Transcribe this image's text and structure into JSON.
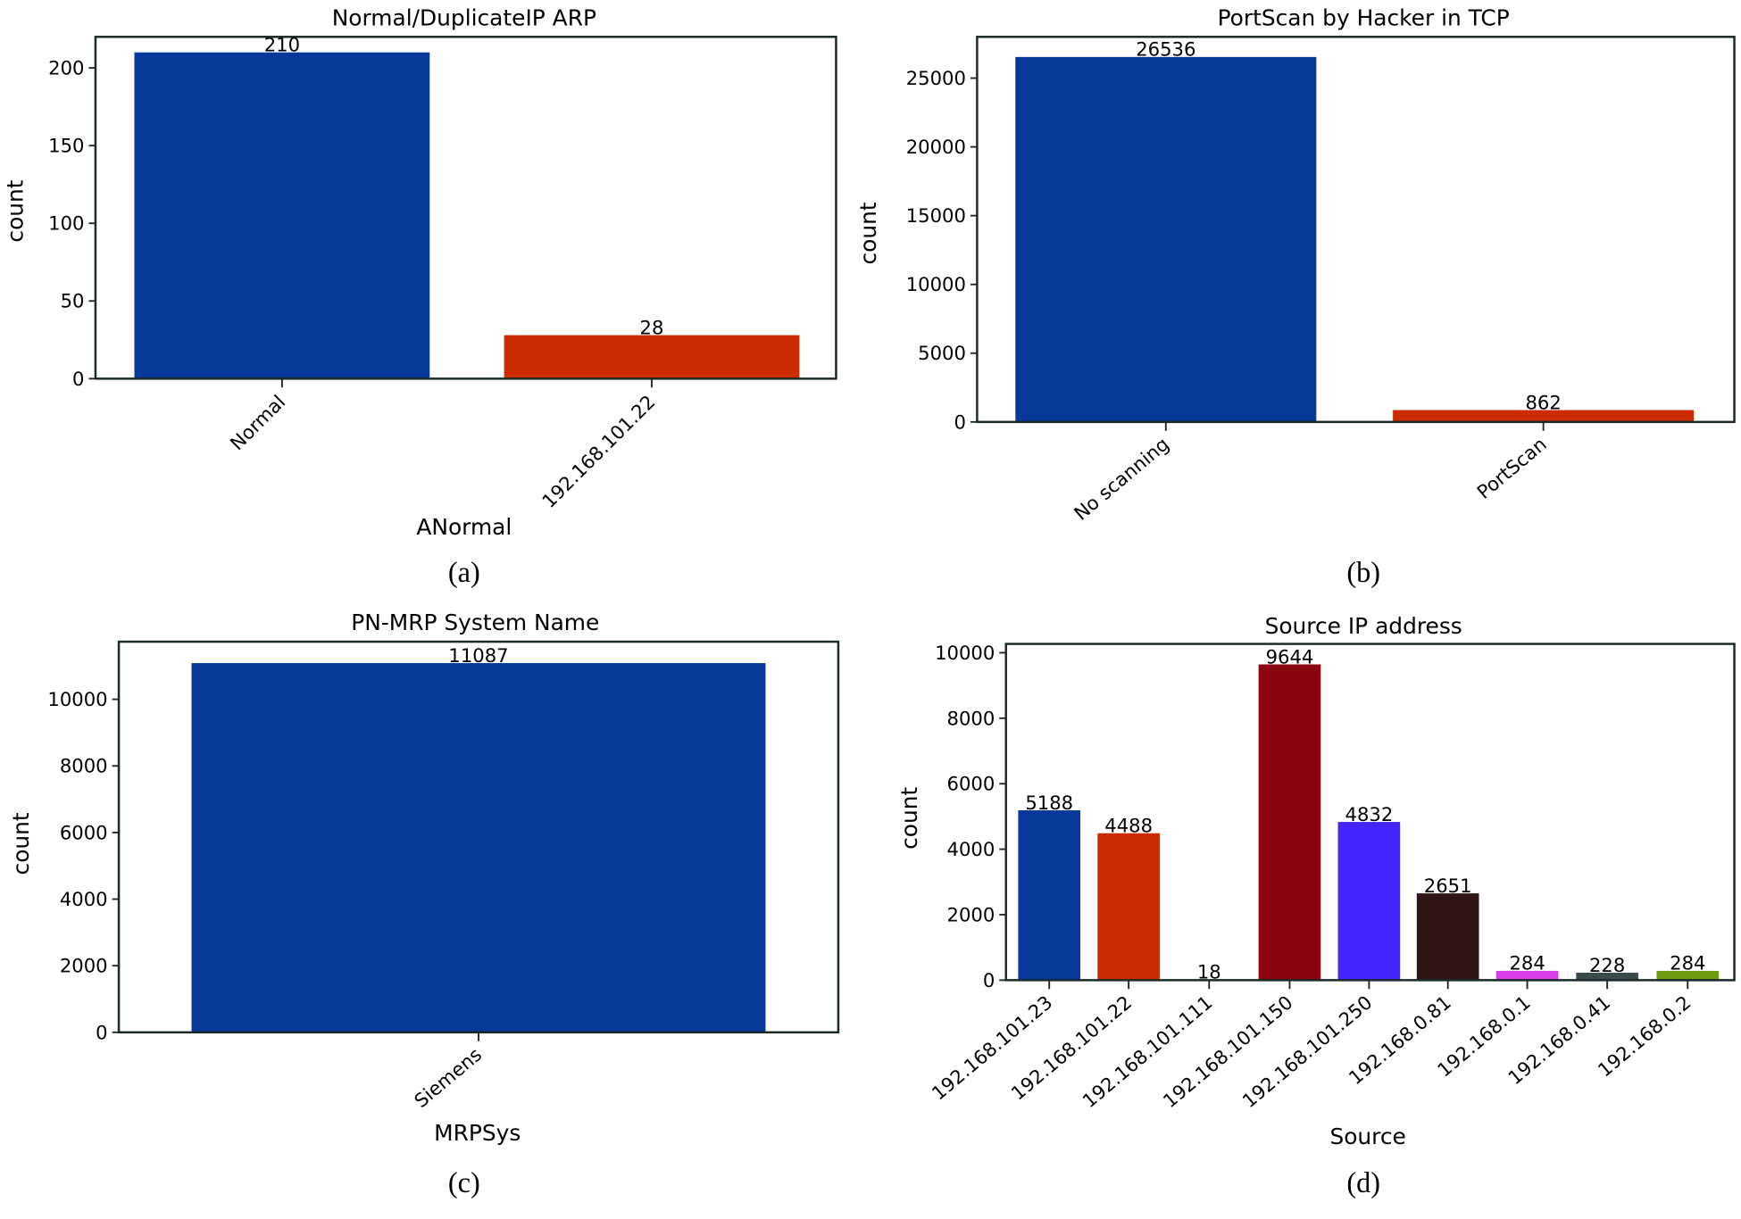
{
  "chart_data": [
    {
      "type": "bar",
      "caption": "(a)",
      "title": "Normal/DuplicateIP ARP",
      "xlabel": "ANormal",
      "ylabel": "count",
      "categories": [
        "Normal",
        "192.168.101.22"
      ],
      "values": [
        210,
        28
      ],
      "data_labels": [
        "210",
        "28"
      ],
      "colors": [
        "#06399a",
        "#cc2a00"
      ],
      "ylim": [
        0,
        220
      ],
      "yticks": [
        0,
        50,
        100,
        150,
        200
      ],
      "grid": false
    },
    {
      "type": "bar",
      "caption": "(b)",
      "title": "PortScan by Hacker in TCP",
      "xlabel": "",
      "ylabel": "count",
      "categories": [
        "No scanning",
        "PortScan"
      ],
      "values": [
        26536,
        862
      ],
      "data_labels": [
        "26536",
        "862"
      ],
      "colors": [
        "#06399a",
        "#cc2a00"
      ],
      "ylim": [
        0,
        28000
      ],
      "yticks": [
        0,
        5000,
        10000,
        15000,
        20000,
        25000
      ],
      "grid": false
    },
    {
      "type": "bar",
      "caption": "(c)",
      "title": "PN-MRP System Name",
      "xlabel": "MRPSys",
      "ylabel": "count",
      "categories": [
        "Siemens"
      ],
      "values": [
        11087
      ],
      "data_labels": [
        "11087"
      ],
      "colors": [
        "#06399a"
      ],
      "ylim": [
        0,
        11730
      ],
      "yticks": [
        0,
        2000,
        4000,
        6000,
        8000,
        10000
      ],
      "grid": false
    },
    {
      "type": "bar",
      "caption": "(d)",
      "title": "Source IP address",
      "xlabel": "Source",
      "ylabel": "count",
      "categories": [
        "192.168.101.23",
        "192.168.101.22",
        "192.168.101.111",
        "192.168.101.150",
        "192.168.101.250",
        "192.168.0.81",
        "192.168.0.1",
        "192.168.0.41",
        "192.168.0.2"
      ],
      "values": [
        5188,
        4488,
        18,
        9644,
        4832,
        2651,
        284,
        228,
        284
      ],
      "data_labels": [
        "5188",
        "4488",
        "18",
        "9644",
        "4832",
        "2651",
        "284",
        "228",
        "284"
      ],
      "colors": [
        "#06399a",
        "#cc2a00",
        "#2a7a3a",
        "#8b0510",
        "#4326ff",
        "#301515",
        "#d63ee8",
        "#3b4a4a",
        "#6f9a14"
      ],
      "ylim": [
        0,
        10270
      ],
      "yticks": [
        0,
        2000,
        4000,
        6000,
        8000,
        10000
      ],
      "grid": false
    }
  ]
}
